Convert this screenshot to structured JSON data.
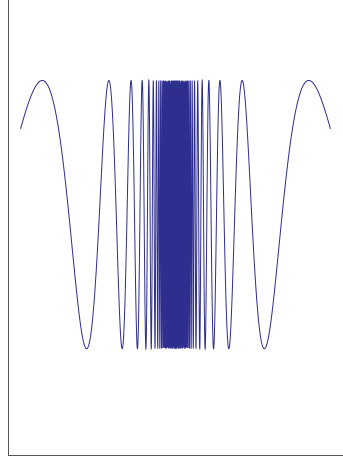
{
  "chart_data": {
    "type": "line",
    "title": "",
    "xlabel": "",
    "ylabel": "",
    "function": "y = cos(1/x)",
    "xlim": [
      -0.2,
      0.2
    ],
    "ylim": [
      -1.8,
      1.6
    ],
    "grid": false,
    "legend": "none",
    "series": [
      {
        "samples": 4000,
        "x_range": [
          -0.185,
          0.185
        ]
      }
    ],
    "colors": {
      "line": "#2e2e8e",
      "axis": "#555555",
      "background": "#ffffff"
    }
  }
}
